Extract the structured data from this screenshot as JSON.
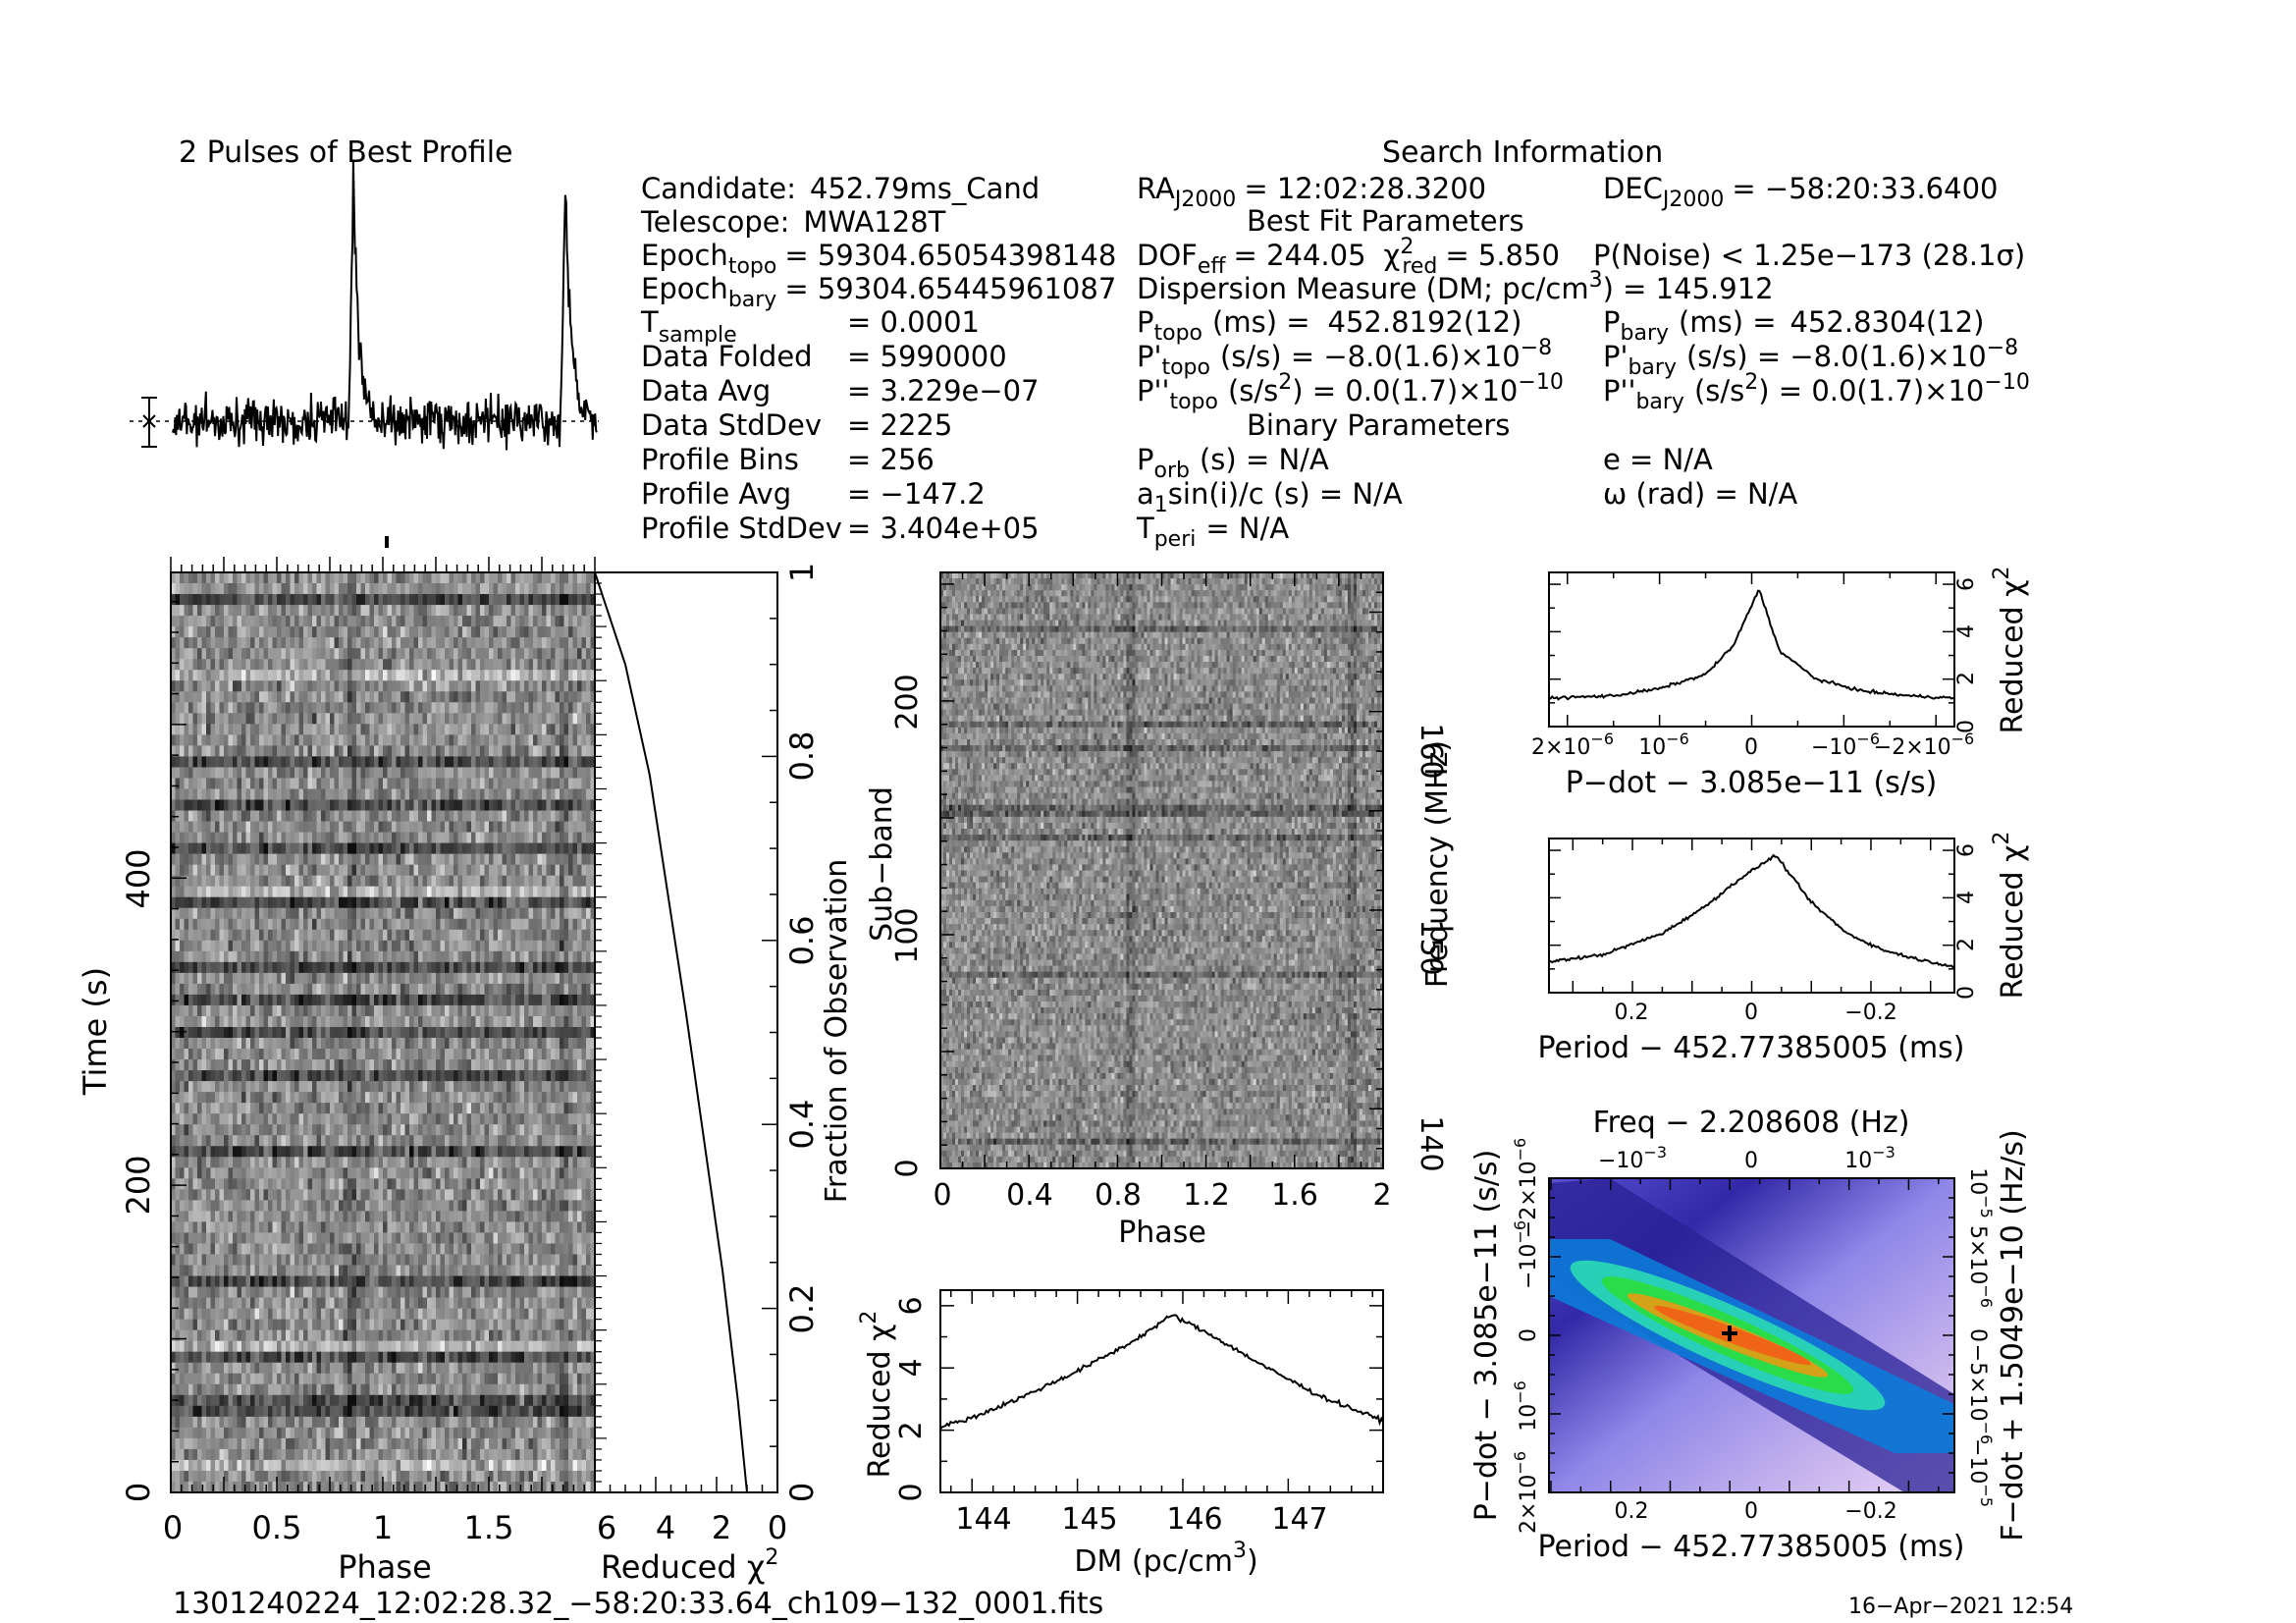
{
  "header": {
    "profile_title": "2 Pulses of Best Profile",
    "search_title": "Search Information",
    "best_fit_title": "Best Fit Parameters",
    "binary_title": "Binary Parameters"
  },
  "info_left": [
    {
      "label": "Candidate:",
      "value": "452.79ms_Cand"
    },
    {
      "label": "Telescope:",
      "value": "MWA128T"
    },
    {
      "label": "Epoch",
      "sub": "topo",
      "value": "= 59304.65054398148"
    },
    {
      "label": "Epoch",
      "sub": "bary",
      "value": "= 59304.65445961087"
    },
    {
      "label": "T",
      "sub": "sample",
      "value": "=  0.0001"
    },
    {
      "label": "Data Folded",
      "value": "=  5990000"
    },
    {
      "label": "Data Avg",
      "value": "=  3.229e−07"
    },
    {
      "label": "Data StdDev",
      "value": "=  2225"
    },
    {
      "label": "Profile Bins",
      "value": "=  256"
    },
    {
      "label": "Profile Avg",
      "value": "=  −147.2"
    },
    {
      "label": "Profile StdDev",
      "value": "=  3.404e+05"
    }
  ],
  "info_mid": {
    "ra": {
      "label": "RA",
      "sub": "J2000",
      "value": "= 12:02:28.3200"
    },
    "dof": {
      "label": "DOF",
      "sub": "eff",
      "value": "= 244.05",
      "chi_label": "χ",
      "chi_sup": "2",
      "chi_sub": "red",
      "chi_value": "= 5.850"
    },
    "dm": "Dispersion Measure (DM; pc/cm",
    "dm_sup": "3",
    "dm_value": ") = 145.912",
    "p_topo": {
      "label": "P",
      "sub": "topo",
      "unit": "(ms) =",
      "value": "452.8192(12)"
    },
    "pd_topo": {
      "label": "P'",
      "sub": "topo",
      "unit": "(s/s) = −8.0(1.6)×10",
      "exp": "−8"
    },
    "pdd_topo": {
      "label": "P''",
      "sub": "topo",
      "unit": "(s/s",
      "unit_sup": "2",
      "rest": ") = 0.0(1.7)×10",
      "exp": "−10"
    },
    "porb": {
      "label": "P",
      "sub": "orb",
      "value": "(s) = N/A"
    },
    "asini": {
      "label": "a",
      "sub": "1",
      "value": "sin(i)/c (s) = N/A"
    },
    "tperi": {
      "label": "T",
      "sub": "peri",
      "value": "= N/A"
    }
  },
  "info_right": {
    "dec": {
      "label": "DEC",
      "sub": "J2000",
      "value": "= −58:20:33.6400"
    },
    "pnoise": "P(Noise) < 1.25e−173   (28.1σ)",
    "p_bary": {
      "label": "P",
      "sub": "bary",
      "unit": "(ms) =",
      "value": "452.8304(12)"
    },
    "pd_bary": {
      "label": "P'",
      "sub": "bary",
      "unit": "(s/s) = −8.0(1.6)×10",
      "exp": "−8"
    },
    "pdd_bary": {
      "label": "P''",
      "sub": "bary",
      "unit": "(s/s",
      "unit_sup": "2",
      "rest": ") = 0.0(1.7)×10",
      "exp": "−10"
    },
    "e": "e = N/A",
    "omega": "ω (rad) = N/A"
  },
  "footer": {
    "filename": "1301240224_12:02:28.32_−58:20:33.64_ch109−132_0001.fits",
    "date": "16−Apr−2021 12:54"
  },
  "chart_data": [
    {
      "id": "profile",
      "type": "line",
      "title": "2 Pulses of Best Profile",
      "xlim": [
        0,
        2
      ],
      "description_peaks": [
        0.85,
        1.85
      ],
      "y_relative": true
    },
    {
      "id": "time_phase",
      "type": "heatmap",
      "xlabel": "Phase",
      "ylabel": "Time (s)",
      "xticks": [
        "0",
        "0.5",
        "1",
        "1.5"
      ],
      "yticks": [
        "0",
        "200",
        "400"
      ],
      "xlim": [
        0,
        2
      ],
      "ylim": [
        0,
        599
      ]
    },
    {
      "id": "time_chi2",
      "type": "line",
      "xlabel": "Reduced χ",
      "xlabel_sup": "2",
      "ylabel": "Fraction of Observation",
      "xticks": [
        "6",
        "4",
        "2",
        "0"
      ],
      "yticks": [
        "0",
        "0.2",
        "0.4",
        "0.6",
        "0.8",
        "1"
      ],
      "xlim": [
        6,
        0
      ],
      "ylim": [
        0,
        1
      ],
      "x": [
        6.0,
        5.0,
        4.2,
        3.6,
        3.0,
        2.4,
        1.8,
        1.3,
        1.0
      ],
      "y": [
        1.0,
        0.9,
        0.78,
        0.65,
        0.52,
        0.38,
        0.24,
        0.1,
        0.0
      ]
    },
    {
      "id": "subband_phase",
      "type": "heatmap",
      "xlabel": "Phase",
      "ylabel": "Sub−band",
      "y2label": "Frequency (MHz)",
      "xticks": [
        "0",
        "0.4",
        "0.8",
        "1.2",
        "1.6",
        "2"
      ],
      "yticks": [
        "0",
        "100",
        "200"
      ],
      "y2ticks": [
        "140",
        "150",
        "160"
      ],
      "xlim": [
        0,
        2
      ],
      "ylim": [
        0,
        255
      ],
      "y2lim": [
        137,
        167
      ]
    },
    {
      "id": "dm_chi2",
      "type": "line",
      "xlabel": "DM (pc/cm",
      "xlabel_sup": "3",
      "xlabel_end": ")",
      "ylabel": "Reduced χ",
      "ylabel_sup": "2",
      "xticks": [
        "144",
        "145",
        "146",
        "147"
      ],
      "yticks": [
        "0",
        "2",
        "4",
        "6"
      ],
      "xlim": [
        143.7,
        147.9
      ],
      "ylim": [
        0,
        6.5
      ],
      "x": [
        143.7,
        144.0,
        144.5,
        145.0,
        145.5,
        145.9,
        146.3,
        146.8,
        147.3,
        147.9
      ],
      "y": [
        2.1,
        2.4,
        3.1,
        3.9,
        4.8,
        5.7,
        5.0,
        4.0,
        3.1,
        2.3
      ]
    },
    {
      "id": "pdot_chi2",
      "type": "line",
      "xlabel": "P−dot − 3.085e−11 (s/s)",
      "ylabel": "Reduced χ",
      "ylabel_sup": "2",
      "xticks": [
        "2×10",
        "10",
        "0",
        "−10",
        "−2×10"
      ],
      "xtick_exp": "−6",
      "yticks": [
        "0",
        "2",
        "4",
        "6"
      ],
      "xlim": [
        2.2e-06,
        -2.2e-06
      ],
      "ylim": [
        0,
        6.5
      ],
      "x": [
        2.2e-06,
        1.5e-06,
        1e-06,
        5e-07,
        2e-07,
        -8e-08,
        -3e-07,
        -7e-07,
        -1.2e-06,
        -1.7e-06,
        -2.2e-06
      ],
      "y": [
        1.2,
        1.3,
        1.6,
        2.2,
        3.4,
        5.8,
        3.2,
        2.0,
        1.5,
        1.3,
        1.2
      ]
    },
    {
      "id": "period_chi2",
      "type": "line",
      "xlabel": "Period − 452.77385005 (ms)",
      "ylabel": "Reduced χ",
      "ylabel_sup": "2",
      "xticks": [
        "0.2",
        "0",
        "−0.2"
      ],
      "yticks": [
        "0",
        "2",
        "4",
        "6"
      ],
      "xlim": [
        0.34,
        -0.34
      ],
      "ylim": [
        0,
        6.5
      ],
      "x": [
        0.34,
        0.25,
        0.15,
        0.08,
        0.02,
        -0.04,
        -0.1,
        -0.16,
        -0.22,
        -0.28,
        -0.34
      ],
      "y": [
        1.3,
        1.6,
        2.5,
        3.6,
        4.8,
        5.8,
        3.8,
        2.5,
        1.8,
        1.4,
        1.1
      ]
    },
    {
      "id": "pdot_period_map",
      "type": "heatmap",
      "title": "Freq − 2.208608 (Hz)",
      "xlabel": "Period − 452.77385005 (ms)",
      "ylabel": "P−dot − 3.085e−11 (s/s)",
      "y2label": "F−dot + 1.5049e−10 (Hz/s)",
      "xticks": [
        "0.2",
        "0",
        "−0.2"
      ],
      "topticks": [
        "−10",
        "0",
        "10"
      ],
      "topticks_exp": "−3",
      "yticks": [
        "2×10",
        "10",
        "0",
        "−10",
        "−2×10"
      ],
      "yticks_exp": "−6",
      "y2ticks": [
        "−10",
        "−5×10",
        "0",
        "5×10",
        "10"
      ],
      "y2ticks_exp": [
        "−5",
        "−6",
        "",
        "−6",
        "−5"
      ],
      "peak": {
        "period": -0.04,
        "pdot": 0
      }
    }
  ]
}
